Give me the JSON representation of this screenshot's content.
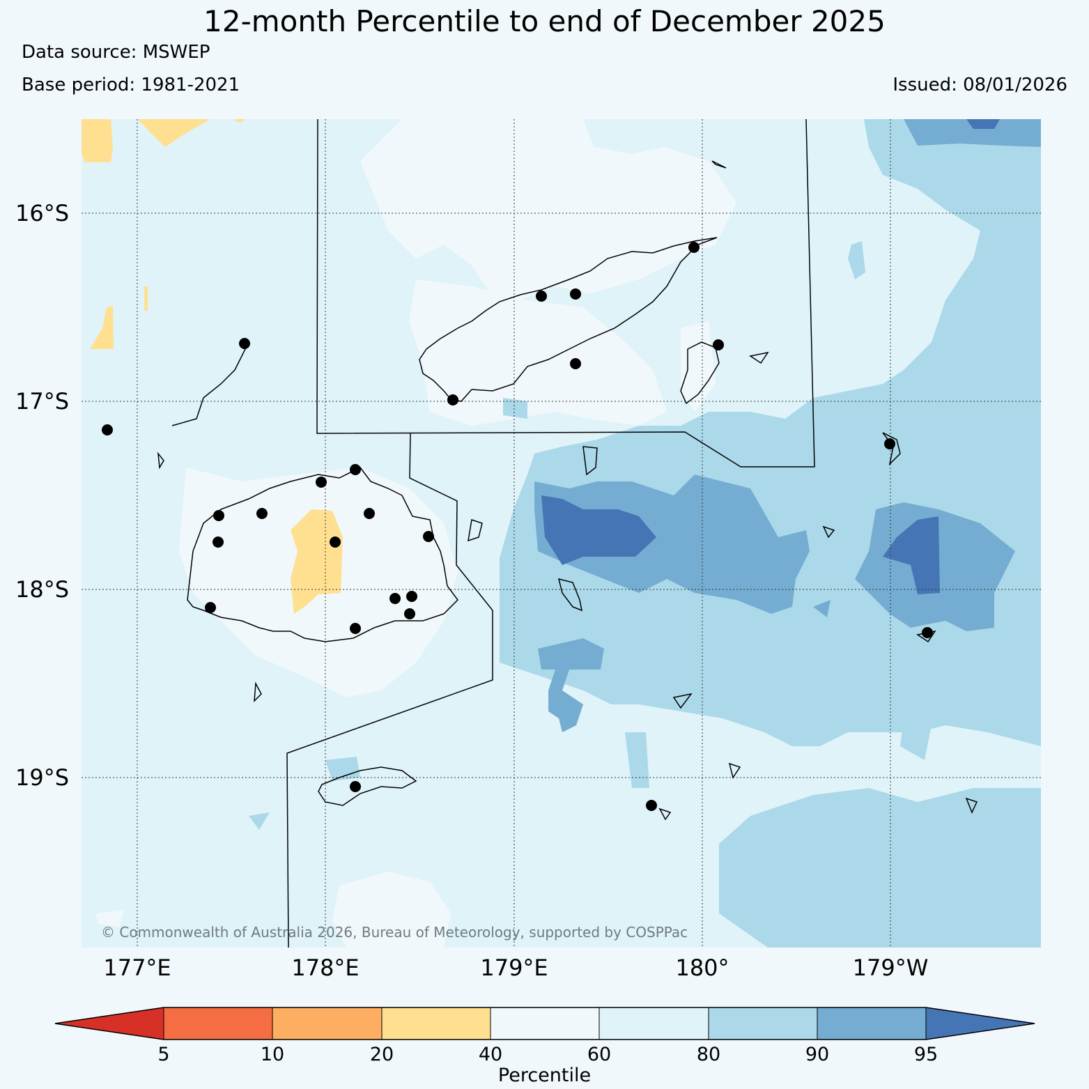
{
  "title": "12-month Percentile to end of December 2025",
  "data_source": "Data source: MSWEP",
  "base_period": "Base period: 1981-2021",
  "issued": "Issued: 08/01/2026",
  "copyright": "© Commonwealth of Australia 2026, Bureau of Meteorology, supported by COSPPac",
  "lat_labels": [
    "16°S",
    "17°S",
    "18°S",
    "19°S"
  ],
  "lon_labels": [
    "177°E",
    "178°E",
    "179°E",
    "180°",
    "179°W"
  ],
  "colorbar": {
    "label": "Percentile",
    "ticks": [
      "5",
      "10",
      "20",
      "40",
      "60",
      "80",
      "90",
      "95"
    ],
    "colors": {
      "below_5": "#d73027",
      "5_10": "#f46d43",
      "10_20": "#fdae61",
      "20_40": "#fee090",
      "40_60": "#f1f8fb",
      "60_80": "#e0f3f8",
      "80_90": "#abd9e9",
      "90_95": "#74add1",
      "above_95": "#4575b4"
    }
  },
  "station_icon": "station-dot-icon"
}
